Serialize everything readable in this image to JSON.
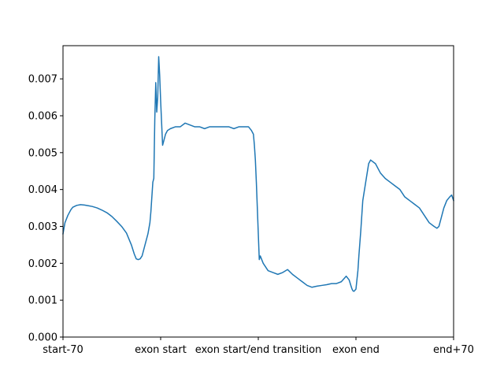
{
  "chart_data": {
    "type": "line",
    "title": "",
    "xlabel": "",
    "ylabel": "",
    "xlim": [
      0,
      400
    ],
    "ylim": [
      0,
      0.0079
    ],
    "grid": false,
    "x_ticks": [
      {
        "x": 0,
        "label": "start-70"
      },
      {
        "x": 100,
        "label": "exon start"
      },
      {
        "x": 200,
        "label": "exon start/end transition"
      },
      {
        "x": 300,
        "label": "exon end"
      },
      {
        "x": 400,
        "label": "end+70"
      }
    ],
    "y_ticks": [
      {
        "y": 0.0,
        "label": "0.000"
      },
      {
        "y": 0.001,
        "label": "0.001"
      },
      {
        "y": 0.002,
        "label": "0.002"
      },
      {
        "y": 0.003,
        "label": "0.003"
      },
      {
        "y": 0.004,
        "label": "0.004"
      },
      {
        "y": 0.005,
        "label": "0.005"
      },
      {
        "y": 0.006,
        "label": "0.006"
      },
      {
        "y": 0.007,
        "label": "0.007"
      }
    ],
    "series": [
      {
        "color": "#1f77b4",
        "x": [
          0,
          2,
          5,
          8,
          10,
          14,
          18,
          22,
          26,
          30,
          35,
          40,
          45,
          50,
          55,
          60,
          65,
          70,
          73,
          75,
          77,
          79,
          81,
          83,
          85,
          87,
          89,
          90,
          91,
          92,
          93,
          94,
          95,
          96,
          97,
          98,
          99,
          100,
          101,
          102,
          103,
          105,
          107,
          110,
          115,
          120,
          125,
          130,
          135,
          140,
          145,
          150,
          155,
          160,
          165,
          170,
          175,
          180,
          185,
          190,
          193,
          195,
          196,
          197,
          198,
          199,
          200,
          201,
          202,
          205,
          210,
          215,
          220,
          225,
          230,
          235,
          240,
          245,
          250,
          255,
          260,
          265,
          270,
          275,
          280,
          285,
          290,
          293,
          295,
          296,
          297,
          298,
          300,
          302,
          303,
          305,
          307,
          310,
          313,
          315,
          320,
          325,
          330,
          335,
          340,
          345,
          350,
          355,
          360,
          365,
          370,
          375,
          380,
          383,
          385,
          387,
          390,
          393,
          396,
          398,
          400
        ],
        "y": [
          0.0028,
          0.0031,
          0.0033,
          0.00345,
          0.00352,
          0.00357,
          0.00359,
          0.00358,
          0.00356,
          0.00354,
          0.0035,
          0.00344,
          0.00337,
          0.00327,
          0.00314,
          0.003,
          0.00282,
          0.0025,
          0.00225,
          0.00212,
          0.0021,
          0.00212,
          0.0022,
          0.0024,
          0.0026,
          0.0028,
          0.0031,
          0.0034,
          0.0038,
          0.0042,
          0.0043,
          0.0059,
          0.0069,
          0.0061,
          0.0065,
          0.0076,
          0.0071,
          0.0064,
          0.0058,
          0.0052,
          0.0053,
          0.0055,
          0.0056,
          0.00565,
          0.0057,
          0.0057,
          0.0058,
          0.00575,
          0.0057,
          0.0057,
          0.00565,
          0.0057,
          0.0057,
          0.0057,
          0.0057,
          0.0057,
          0.00565,
          0.0057,
          0.0057,
          0.0057,
          0.0056,
          0.0055,
          0.0052,
          0.0048,
          0.0042,
          0.0035,
          0.0028,
          0.0021,
          0.0022,
          0.002,
          0.0018,
          0.00175,
          0.0017,
          0.00175,
          0.00183,
          0.0017,
          0.0016,
          0.0015,
          0.0014,
          0.00135,
          0.00138,
          0.0014,
          0.00142,
          0.00145,
          0.00145,
          0.0015,
          0.00165,
          0.00155,
          0.00138,
          0.0013,
          0.00125,
          0.00124,
          0.0013,
          0.0018,
          0.0022,
          0.0029,
          0.0037,
          0.0042,
          0.0047,
          0.0048,
          0.0047,
          0.00445,
          0.0043,
          0.0042,
          0.0041,
          0.004,
          0.0038,
          0.0037,
          0.0036,
          0.0035,
          0.0033,
          0.0031,
          0.003,
          0.00295,
          0.003,
          0.0032,
          0.0035,
          0.0037,
          0.0038,
          0.00385,
          0.0037
        ]
      }
    ]
  }
}
